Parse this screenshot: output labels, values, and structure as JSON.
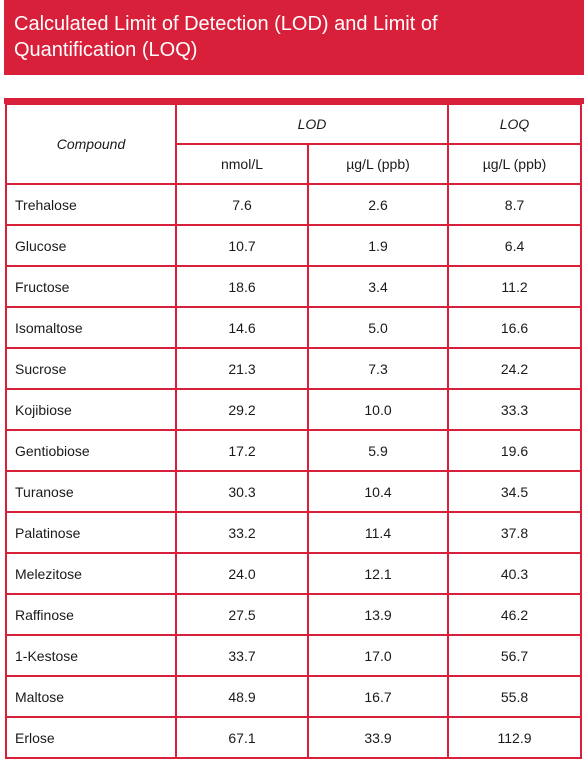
{
  "title": {
    "line1": "Calculated Limit of Detection (LOD) and Limit of",
    "line2": "Quantification (LOQ)"
  },
  "table": {
    "header_compound": "Compound",
    "header_lod": "LOD",
    "header_loq": "LOQ",
    "unit_nmol": "nmol/L",
    "unit_lod_ugl": "µg/L (ppb)",
    "unit_loq_ugl": "µg/L (ppb)",
    "rows": [
      {
        "compound": "Trehalose",
        "lod_nmol": "7.6",
        "lod_ugl": "2.6",
        "loq_ugl": "8.7"
      },
      {
        "compound": "Glucose",
        "lod_nmol": "10.7",
        "lod_ugl": "1.9",
        "loq_ugl": "6.4"
      },
      {
        "compound": "Fructose",
        "lod_nmol": "18.6",
        "lod_ugl": "3.4",
        "loq_ugl": "11.2"
      },
      {
        "compound": "Isomaltose",
        "lod_nmol": "14.6",
        "lod_ugl": "5.0",
        "loq_ugl": "16.6"
      },
      {
        "compound": "Sucrose",
        "lod_nmol": "21.3",
        "lod_ugl": "7.3",
        "loq_ugl": "24.2"
      },
      {
        "compound": "Kojibiose",
        "lod_nmol": "29.2",
        "lod_ugl": "10.0",
        "loq_ugl": "33.3"
      },
      {
        "compound": "Gentiobiose",
        "lod_nmol": "17.2",
        "lod_ugl": "5.9",
        "loq_ugl": "19.6"
      },
      {
        "compound": "Turanose",
        "lod_nmol": "30.3",
        "lod_ugl": "10.4",
        "loq_ugl": "34.5"
      },
      {
        "compound": "Palatinose",
        "lod_nmol": "33.2",
        "lod_ugl": "11.4",
        "loq_ugl": "37.8"
      },
      {
        "compound": "Melezitose",
        "lod_nmol": "24.0",
        "lod_ugl": "12.1",
        "loq_ugl": "40.3"
      },
      {
        "compound": "Raffinose",
        "lod_nmol": "27.5",
        "lod_ugl": "13.9",
        "loq_ugl": "46.2"
      },
      {
        "compound": "1-Kestose",
        "lod_nmol": "33.7",
        "lod_ugl": "17.0",
        "loq_ugl": "56.7"
      },
      {
        "compound": "Maltose",
        "lod_nmol": "48.9",
        "lod_ugl": "16.7",
        "loq_ugl": "55.8"
      },
      {
        "compound": "Erlose",
        "lod_nmol": "67.1",
        "lod_ugl": "33.9",
        "loq_ugl": "112.9"
      }
    ]
  },
  "colors": {
    "accent": "#d9203a",
    "text": "#1a1a1a",
    "background": "#ffffff"
  }
}
